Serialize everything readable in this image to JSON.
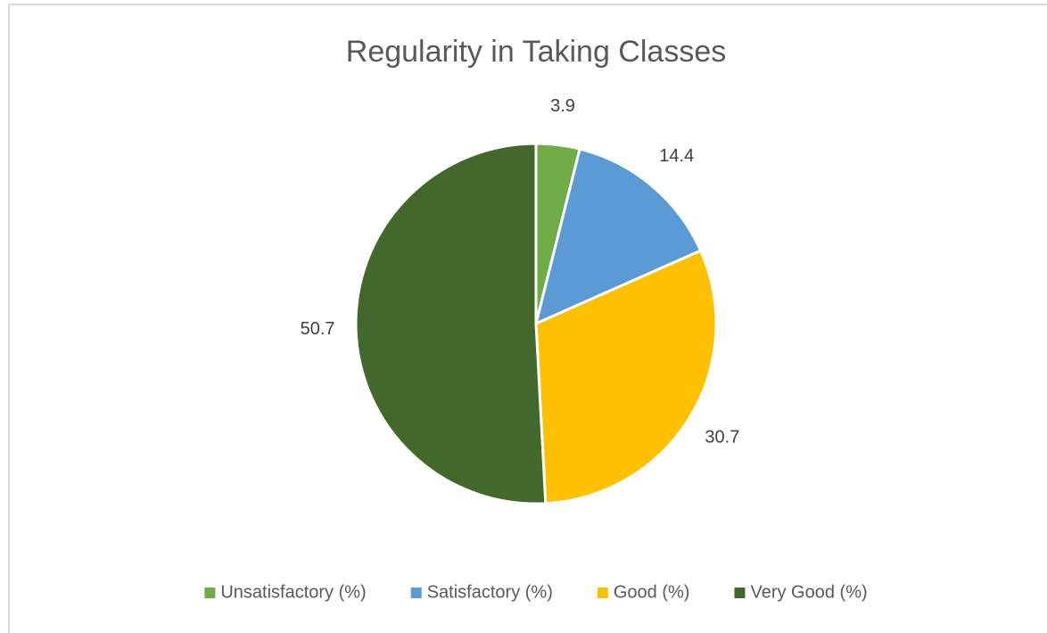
{
  "chart_data": {
    "type": "pie",
    "title": "Regularity in Taking Classes",
    "categories": [
      "Unsatisfactory (%)",
      "Satisfactory (%)",
      "Good (%)",
      "Very Good (%)"
    ],
    "values": [
      3.9,
      14.4,
      30.7,
      50.7
    ],
    "colors": [
      "#70ad47",
      "#5b9bd5",
      "#ffc000",
      "#43682b"
    ],
    "legend": "bottom"
  }
}
